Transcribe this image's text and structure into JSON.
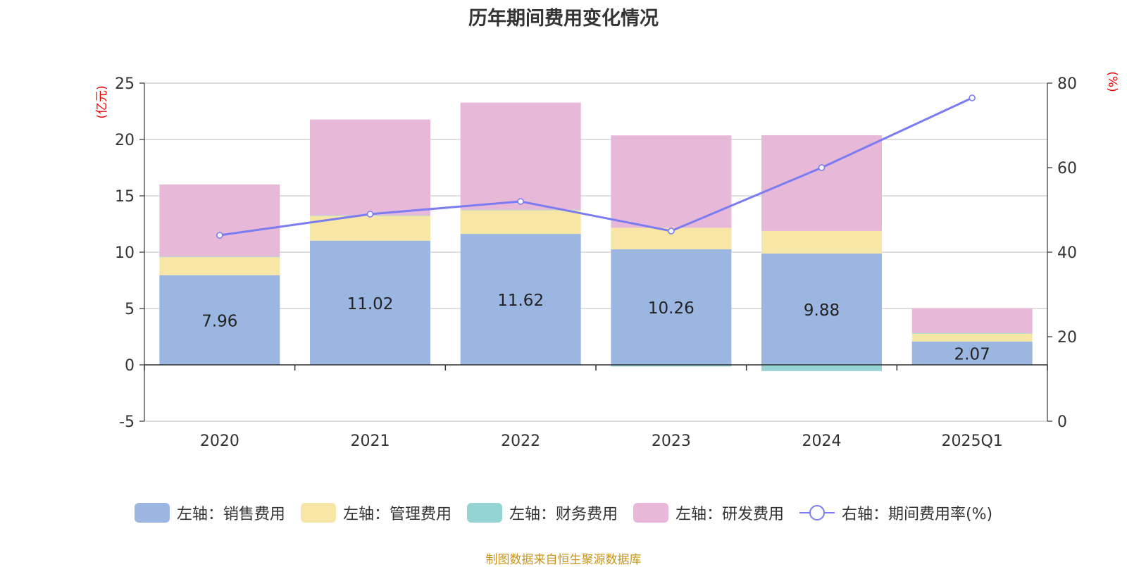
{
  "title": "历年期间费用变化情况",
  "source_note": "制图数据来自恒生聚源数据库",
  "colors": {
    "sales": "#9bb7e1",
    "admin": "#f7e6a6",
    "finance": "#95d3d4",
    "rnd": "#e8b8d9",
    "rate_line": "#7b7cf0",
    "axis_unit": "#ee0000"
  },
  "legend": [
    {
      "label": "左轴：销售费用",
      "type": "bar",
      "color_key": "sales"
    },
    {
      "label": "左轴：管理费用",
      "type": "bar",
      "color_key": "admin"
    },
    {
      "label": "左轴：财务费用",
      "type": "bar",
      "color_key": "finance"
    },
    {
      "label": "左轴：研发费用",
      "type": "bar",
      "color_key": "rnd"
    },
    {
      "label": "右轴：期间费用率(%)",
      "type": "line",
      "color_key": "rate_line"
    }
  ],
  "chart_data": {
    "type": "bar",
    "stacked": true,
    "categories": [
      "2020",
      "2021",
      "2022",
      "2023",
      "2024",
      "2025Q1"
    ],
    "left_axis": {
      "unit_label": "(亿元)",
      "ylim": [
        -5,
        25
      ],
      "ticks": [
        -5,
        0,
        5,
        10,
        15,
        20,
        25
      ]
    },
    "right_axis": {
      "unit_label": "(%)",
      "ylim": [
        0,
        80
      ],
      "ticks": [
        0,
        20,
        40,
        60,
        80
      ]
    },
    "series": [
      {
        "name": "左轴：销售费用",
        "axis": "left",
        "color_key": "sales",
        "values": [
          7.96,
          11.02,
          11.62,
          10.26,
          9.88,
          2.07
        ],
        "show_labels": true
      },
      {
        "name": "左轴：管理费用",
        "axis": "left",
        "color_key": "admin",
        "values": [
          1.6,
          2.2,
          2.1,
          1.9,
          2.0,
          0.7
        ]
      },
      {
        "name": "左轴：财务费用",
        "axis": "left",
        "color_key": "finance",
        "values": [
          0.05,
          0.05,
          0.05,
          -0.15,
          -0.55,
          0.05
        ]
      },
      {
        "name": "左轴：研发费用",
        "axis": "left",
        "color_key": "rnd",
        "values": [
          6.4,
          8.5,
          9.5,
          8.2,
          8.5,
          2.2
        ]
      }
    ],
    "line_series": {
      "name": "右轴：期间费用率(%)",
      "axis": "right",
      "color_key": "rate_line",
      "values": [
        44,
        49,
        52,
        45,
        60,
        76.5
      ]
    },
    "grid": true,
    "legend_position": "bottom"
  }
}
